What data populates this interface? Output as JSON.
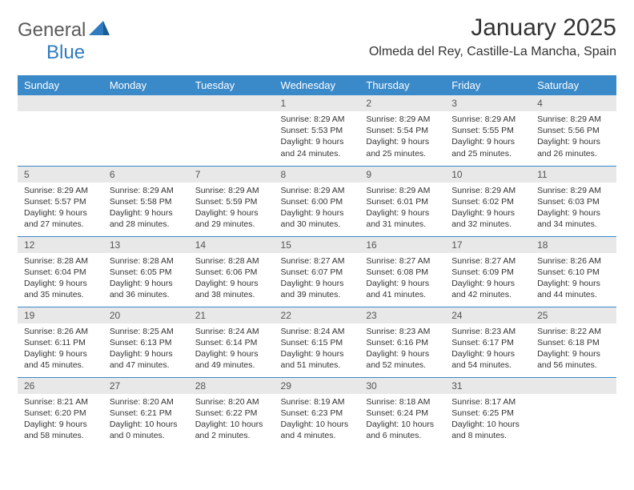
{
  "brand": {
    "part1": "General",
    "part2": "Blue"
  },
  "title": "January 2025",
  "location": "Olmeda del Rey, Castille-La Mancha, Spain",
  "colors": {
    "header_bg": "#3a89c9",
    "header_text": "#ffffff",
    "daynum_bg": "#e8e8e8",
    "rule": "#3a89c9",
    "brand_gray": "#5a5a5a",
    "brand_blue": "#2f7bbf"
  },
  "weekdays": [
    "Sunday",
    "Monday",
    "Tuesday",
    "Wednesday",
    "Thursday",
    "Friday",
    "Saturday"
  ],
  "weeks": [
    [
      null,
      null,
      null,
      {
        "n": "1",
        "sunrise": "8:29 AM",
        "sunset": "5:53 PM",
        "daylight": "9 hours and 24 minutes."
      },
      {
        "n": "2",
        "sunrise": "8:29 AM",
        "sunset": "5:54 PM",
        "daylight": "9 hours and 25 minutes."
      },
      {
        "n": "3",
        "sunrise": "8:29 AM",
        "sunset": "5:55 PM",
        "daylight": "9 hours and 25 minutes."
      },
      {
        "n": "4",
        "sunrise": "8:29 AM",
        "sunset": "5:56 PM",
        "daylight": "9 hours and 26 minutes."
      }
    ],
    [
      {
        "n": "5",
        "sunrise": "8:29 AM",
        "sunset": "5:57 PM",
        "daylight": "9 hours and 27 minutes."
      },
      {
        "n": "6",
        "sunrise": "8:29 AM",
        "sunset": "5:58 PM",
        "daylight": "9 hours and 28 minutes."
      },
      {
        "n": "7",
        "sunrise": "8:29 AM",
        "sunset": "5:59 PM",
        "daylight": "9 hours and 29 minutes."
      },
      {
        "n": "8",
        "sunrise": "8:29 AM",
        "sunset": "6:00 PM",
        "daylight": "9 hours and 30 minutes."
      },
      {
        "n": "9",
        "sunrise": "8:29 AM",
        "sunset": "6:01 PM",
        "daylight": "9 hours and 31 minutes."
      },
      {
        "n": "10",
        "sunrise": "8:29 AM",
        "sunset": "6:02 PM",
        "daylight": "9 hours and 32 minutes."
      },
      {
        "n": "11",
        "sunrise": "8:29 AM",
        "sunset": "6:03 PM",
        "daylight": "9 hours and 34 minutes."
      }
    ],
    [
      {
        "n": "12",
        "sunrise": "8:28 AM",
        "sunset": "6:04 PM",
        "daylight": "9 hours and 35 minutes."
      },
      {
        "n": "13",
        "sunrise": "8:28 AM",
        "sunset": "6:05 PM",
        "daylight": "9 hours and 36 minutes."
      },
      {
        "n": "14",
        "sunrise": "8:28 AM",
        "sunset": "6:06 PM",
        "daylight": "9 hours and 38 minutes."
      },
      {
        "n": "15",
        "sunrise": "8:27 AM",
        "sunset": "6:07 PM",
        "daylight": "9 hours and 39 minutes."
      },
      {
        "n": "16",
        "sunrise": "8:27 AM",
        "sunset": "6:08 PM",
        "daylight": "9 hours and 41 minutes."
      },
      {
        "n": "17",
        "sunrise": "8:27 AM",
        "sunset": "6:09 PM",
        "daylight": "9 hours and 42 minutes."
      },
      {
        "n": "18",
        "sunrise": "8:26 AM",
        "sunset": "6:10 PM",
        "daylight": "9 hours and 44 minutes."
      }
    ],
    [
      {
        "n": "19",
        "sunrise": "8:26 AM",
        "sunset": "6:11 PM",
        "daylight": "9 hours and 45 minutes."
      },
      {
        "n": "20",
        "sunrise": "8:25 AM",
        "sunset": "6:13 PM",
        "daylight": "9 hours and 47 minutes."
      },
      {
        "n": "21",
        "sunrise": "8:24 AM",
        "sunset": "6:14 PM",
        "daylight": "9 hours and 49 minutes."
      },
      {
        "n": "22",
        "sunrise": "8:24 AM",
        "sunset": "6:15 PM",
        "daylight": "9 hours and 51 minutes."
      },
      {
        "n": "23",
        "sunrise": "8:23 AM",
        "sunset": "6:16 PM",
        "daylight": "9 hours and 52 minutes."
      },
      {
        "n": "24",
        "sunrise": "8:23 AM",
        "sunset": "6:17 PM",
        "daylight": "9 hours and 54 minutes."
      },
      {
        "n": "25",
        "sunrise": "8:22 AM",
        "sunset": "6:18 PM",
        "daylight": "9 hours and 56 minutes."
      }
    ],
    [
      {
        "n": "26",
        "sunrise": "8:21 AM",
        "sunset": "6:20 PM",
        "daylight": "9 hours and 58 minutes."
      },
      {
        "n": "27",
        "sunrise": "8:20 AM",
        "sunset": "6:21 PM",
        "daylight": "10 hours and 0 minutes."
      },
      {
        "n": "28",
        "sunrise": "8:20 AM",
        "sunset": "6:22 PM",
        "daylight": "10 hours and 2 minutes."
      },
      {
        "n": "29",
        "sunrise": "8:19 AM",
        "sunset": "6:23 PM",
        "daylight": "10 hours and 4 minutes."
      },
      {
        "n": "30",
        "sunrise": "8:18 AM",
        "sunset": "6:24 PM",
        "daylight": "10 hours and 6 minutes."
      },
      {
        "n": "31",
        "sunrise": "8:17 AM",
        "sunset": "6:25 PM",
        "daylight": "10 hours and 8 minutes."
      },
      null
    ]
  ],
  "labels": {
    "sunrise": "Sunrise:",
    "sunset": "Sunset:",
    "daylight": "Daylight:"
  }
}
